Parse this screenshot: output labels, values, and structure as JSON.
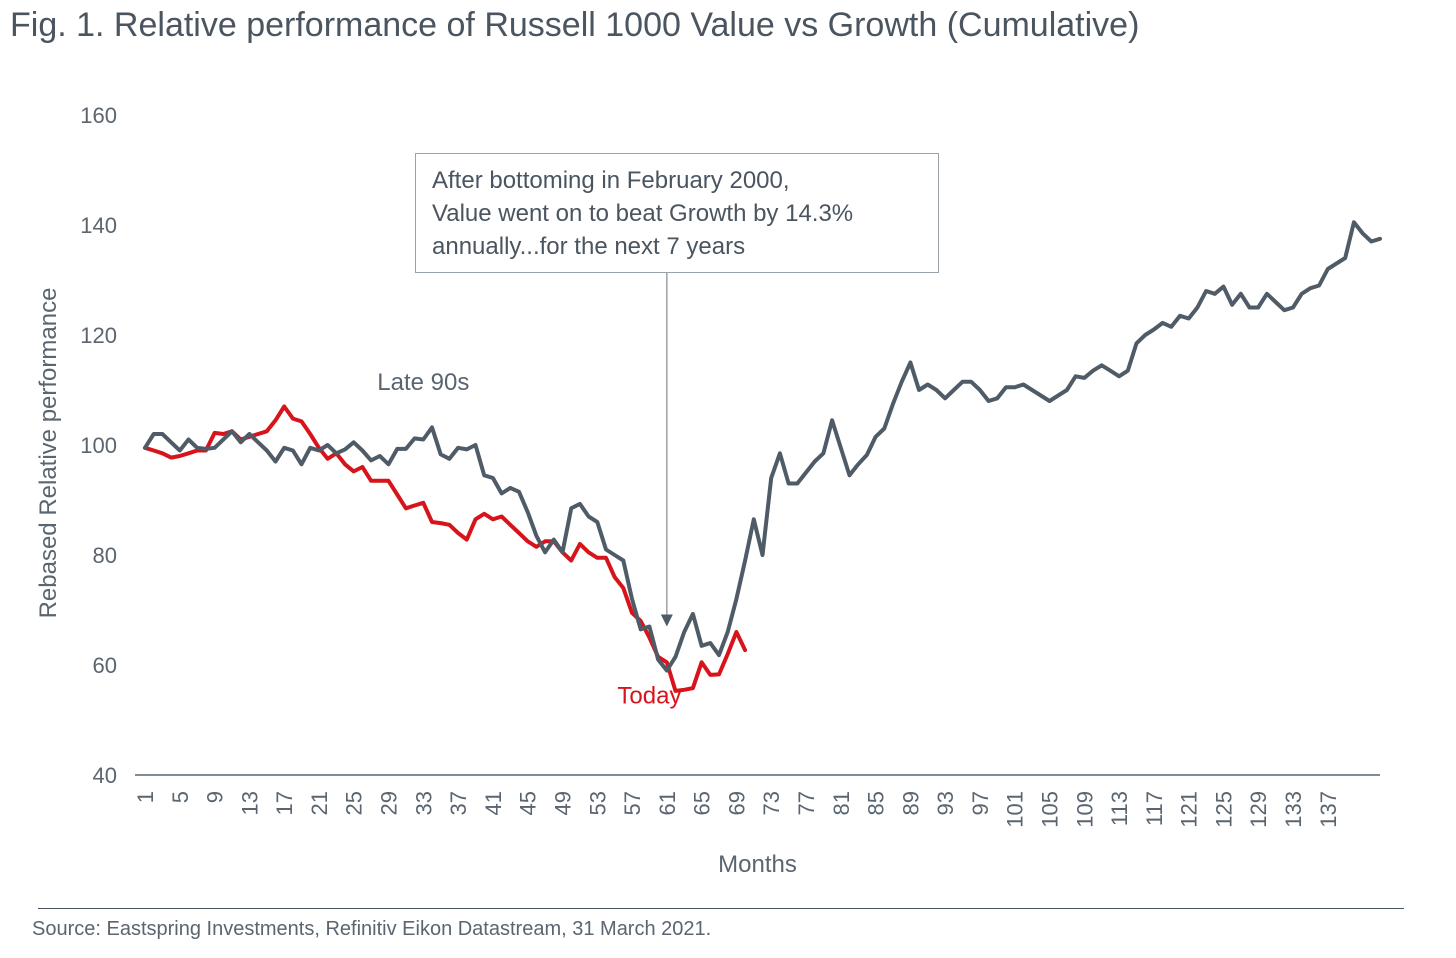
{
  "figure": {
    "title": "Fig. 1. Relative performance of Russell 1000 Value vs Growth (Cumulative)",
    "source": "Source: Eastspring Investments, Refinitiv Eikon Datastream, 31 March 2021."
  },
  "chart_data": {
    "type": "line",
    "xlabel": "Months",
    "ylabel": "Rebased Relative performance",
    "ylim": [
      40,
      160
    ],
    "xlim": [
      1,
      140
    ],
    "yticks": [
      40,
      60,
      80,
      100,
      120,
      140,
      160
    ],
    "xticks": [
      "1",
      "5",
      "9",
      "13",
      "17",
      "21",
      "25",
      "29",
      "33",
      "37",
      "41",
      "45",
      "49",
      "53",
      "57",
      "61",
      "65",
      "69",
      "73",
      "77",
      "81",
      "85",
      "89",
      "93",
      "97",
      "101",
      "105",
      "109",
      "113",
      "117",
      "121",
      "125",
      "129",
      "133",
      "137"
    ],
    "grid": false,
    "annotation": {
      "lines": [
        "After bottoming in February 2000,",
        "Value went on to beat Growth by 14.3%",
        "annually...for the next 7 years"
      ],
      "arrow_to_x": 61,
      "arrow_to_y": 67
    },
    "series": [
      {
        "name": "Late 90s",
        "color": "#4f5b66",
        "label_at": [
          33,
          110
        ],
        "values": [
          [
            1,
            99.5
          ],
          [
            2,
            102
          ],
          [
            3,
            102
          ],
          [
            4,
            100.5
          ],
          [
            5,
            99
          ],
          [
            6,
            101
          ],
          [
            7,
            99.5
          ],
          [
            8,
            99.3
          ],
          [
            9,
            99.5
          ],
          [
            10,
            101
          ],
          [
            11,
            102.5
          ],
          [
            12,
            100.5
          ],
          [
            13,
            102
          ],
          [
            14,
            100.5
          ],
          [
            15,
            99
          ],
          [
            16,
            97
          ],
          [
            17,
            99.5
          ],
          [
            18,
            99
          ],
          [
            19,
            96.5
          ],
          [
            20,
            99.5
          ],
          [
            21,
            99
          ],
          [
            22,
            100
          ],
          [
            23,
            98.5
          ],
          [
            24,
            99.2
          ],
          [
            25,
            100.5
          ],
          [
            26,
            99
          ],
          [
            27,
            97.2
          ],
          [
            28,
            98
          ],
          [
            29,
            96.5
          ],
          [
            30,
            99.3
          ],
          [
            31,
            99.3
          ],
          [
            32,
            101.2
          ],
          [
            33,
            101
          ],
          [
            34,
            103.2
          ],
          [
            35,
            98.3
          ],
          [
            36,
            97.5
          ],
          [
            37,
            99.5
          ],
          [
            38,
            99.2
          ],
          [
            39,
            100
          ],
          [
            40,
            94.5
          ],
          [
            41,
            94
          ],
          [
            42,
            91.2
          ],
          [
            43,
            92.2
          ],
          [
            44,
            91.5
          ],
          [
            45,
            87.8
          ],
          [
            46,
            83.5
          ],
          [
            47,
            80.5
          ],
          [
            48,
            82.8
          ],
          [
            49,
            80.5
          ],
          [
            50,
            88.5
          ],
          [
            51,
            89.3
          ],
          [
            52,
            87
          ],
          [
            53,
            86
          ],
          [
            54,
            81
          ],
          [
            55,
            80
          ],
          [
            56,
            79
          ],
          [
            57,
            72
          ],
          [
            58,
            66.5
          ],
          [
            59,
            67
          ],
          [
            60,
            61
          ],
          [
            61,
            59
          ],
          [
            62,
            61.5
          ],
          [
            63,
            66
          ],
          [
            64,
            69.3
          ],
          [
            65,
            63.5
          ],
          [
            66,
            64
          ],
          [
            67,
            61.8
          ],
          [
            68,
            66
          ],
          [
            69,
            72
          ],
          [
            70,
            79
          ],
          [
            71,
            86.5
          ],
          [
            72,
            80
          ],
          [
            73,
            94
          ],
          [
            74,
            98.5
          ],
          [
            75,
            93
          ],
          [
            76,
            93
          ],
          [
            77,
            95
          ],
          [
            78,
            97
          ],
          [
            79,
            98.5
          ],
          [
            80,
            104.5
          ],
          [
            81,
            99.5
          ],
          [
            82,
            94.5
          ],
          [
            83,
            96.5
          ],
          [
            84,
            98.2
          ],
          [
            85,
            101.5
          ],
          [
            86,
            103
          ],
          [
            87,
            107.5
          ],
          [
            88,
            111.5
          ],
          [
            89,
            115
          ],
          [
            90,
            110
          ],
          [
            91,
            111
          ],
          [
            92,
            110
          ],
          [
            93,
            108.5
          ],
          [
            94,
            110
          ],
          [
            95,
            111.5
          ],
          [
            96,
            111.5
          ],
          [
            97,
            110
          ],
          [
            98,
            108
          ],
          [
            99,
            108.5
          ],
          [
            100,
            110.5
          ],
          [
            101,
            110.5
          ],
          [
            102,
            111
          ],
          [
            103,
            110
          ],
          [
            104,
            109
          ],
          [
            105,
            108
          ],
          [
            106,
            109
          ],
          [
            107,
            110
          ],
          [
            108,
            112.5
          ],
          [
            109,
            112.2
          ],
          [
            110,
            113.5
          ],
          [
            111,
            114.5
          ],
          [
            112,
            113.5
          ],
          [
            113,
            112.5
          ],
          [
            114,
            113.5
          ],
          [
            115,
            118.5
          ],
          [
            116,
            120
          ],
          [
            117,
            121
          ],
          [
            118,
            122.2
          ],
          [
            119,
            121.5
          ],
          [
            120,
            123.5
          ],
          [
            121,
            123
          ],
          [
            122,
            125
          ],
          [
            123,
            128
          ],
          [
            124,
            127.5
          ],
          [
            125,
            128.8
          ],
          [
            126,
            125.5
          ],
          [
            127,
            127.5
          ],
          [
            128,
            125
          ],
          [
            129,
            125
          ],
          [
            130,
            127.5
          ],
          [
            131,
            126
          ],
          [
            132,
            124.5
          ],
          [
            133,
            125
          ],
          [
            134,
            127.5
          ],
          [
            135,
            128.5
          ],
          [
            136,
            129
          ],
          [
            137,
            132
          ],
          [
            138,
            133
          ],
          [
            139,
            134
          ],
          [
            140,
            140.5
          ],
          [
            141,
            138.5
          ],
          [
            142,
            137
          ],
          [
            143,
            137.5
          ]
        ]
      },
      {
        "name": "Today",
        "color": "#d7141b",
        "label_at": [
          59,
          53
        ],
        "values": [
          [
            1,
            99.5
          ],
          [
            2,
            99
          ],
          [
            3,
            98.5
          ],
          [
            4,
            97.7
          ],
          [
            5,
            98
          ],
          [
            6,
            98.5
          ],
          [
            7,
            99
          ],
          [
            8,
            99
          ],
          [
            9,
            102.2
          ],
          [
            10,
            102
          ],
          [
            11,
            102.5
          ],
          [
            12,
            101
          ],
          [
            13,
            101.5
          ],
          [
            14,
            102
          ],
          [
            15,
            102.5
          ],
          [
            16,
            104.5
          ],
          [
            17,
            107
          ],
          [
            18,
            104.8
          ],
          [
            19,
            104.3
          ],
          [
            20,
            102
          ],
          [
            21,
            99.5
          ],
          [
            22,
            97.5
          ],
          [
            23,
            98.5
          ],
          [
            24,
            96.5
          ],
          [
            25,
            95.2
          ],
          [
            26,
            96
          ],
          [
            27,
            93.5
          ],
          [
            28,
            93.5
          ],
          [
            29,
            93.5
          ],
          [
            30,
            91
          ],
          [
            31,
            88.5
          ],
          [
            32,
            89
          ],
          [
            33,
            89.5
          ],
          [
            34,
            86
          ],
          [
            35,
            85.8
          ],
          [
            36,
            85.5
          ],
          [
            37,
            84
          ],
          [
            38,
            82.8
          ],
          [
            39,
            86.5
          ],
          [
            40,
            87.5
          ],
          [
            41,
            86.5
          ],
          [
            42,
            87
          ],
          [
            43,
            85.5
          ],
          [
            44,
            84
          ],
          [
            45,
            82.5
          ],
          [
            46,
            81.5
          ],
          [
            47,
            82.5
          ],
          [
            48,
            82.5
          ],
          [
            49,
            80.5
          ],
          [
            50,
            79
          ],
          [
            51,
            82
          ],
          [
            52,
            80.5
          ],
          [
            53,
            79.5
          ],
          [
            54,
            79.5
          ],
          [
            55,
            76
          ],
          [
            56,
            74
          ],
          [
            57,
            69.5
          ],
          [
            58,
            68
          ],
          [
            59,
            65
          ],
          [
            60,
            61.5
          ],
          [
            61,
            60.5
          ],
          [
            62,
            55.3
          ],
          [
            63,
            55.5
          ],
          [
            64,
            55.8
          ],
          [
            65,
            60.5
          ],
          [
            66,
            58.2
          ],
          [
            67,
            58.3
          ],
          [
            68,
            62
          ],
          [
            69,
            66
          ],
          [
            70,
            62.7
          ]
        ]
      }
    ]
  }
}
